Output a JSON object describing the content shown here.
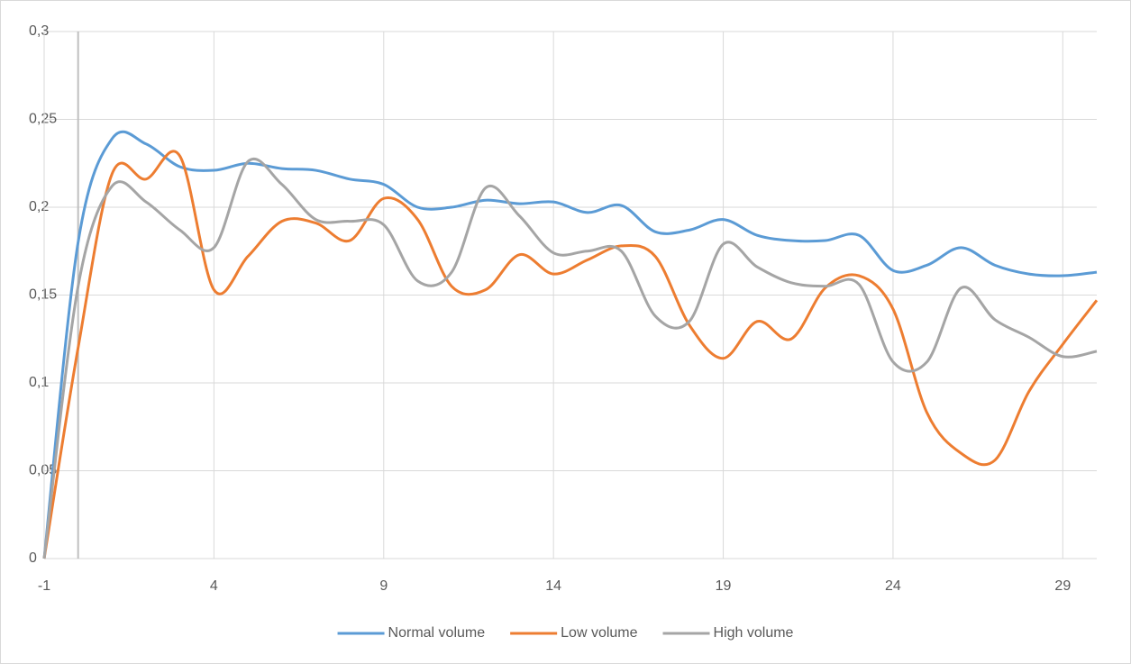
{
  "chart_data": {
    "type": "line",
    "x": [
      -1,
      0,
      1,
      2,
      3,
      4,
      5,
      6,
      7,
      8,
      9,
      10,
      11,
      12,
      13,
      14,
      15,
      16,
      17,
      18,
      19,
      20,
      21,
      22,
      23,
      24,
      25,
      26,
      27,
      28,
      29,
      30
    ],
    "series": [
      {
        "name": "Normal volume",
        "color": "#5b9bd5",
        "values": [
          0,
          0.18,
          0.239,
          0.236,
          0.223,
          0.221,
          0.225,
          0.222,
          0.221,
          0.216,
          0.213,
          0.2,
          0.2,
          0.204,
          0.202,
          0.203,
          0.197,
          0.201,
          0.186,
          0.187,
          0.193,
          0.184,
          0.181,
          0.181,
          0.184,
          0.164,
          0.167,
          0.177,
          0.167,
          0.162,
          0.161,
          0.163
        ]
      },
      {
        "name": "Low volume",
        "color": "#ed7d31",
        "values": [
          0,
          0.12,
          0.219,
          0.216,
          0.229,
          0.153,
          0.172,
          0.192,
          0.191,
          0.181,
          0.205,
          0.193,
          0.155,
          0.153,
          0.173,
          0.162,
          0.17,
          0.178,
          0.172,
          0.133,
          0.114,
          0.135,
          0.125,
          0.154,
          0.161,
          0.142,
          0.083,
          0.06,
          0.056,
          0.095,
          0.122,
          0.147
        ]
      },
      {
        "name": "High volume",
        "color": "#a5a5a5",
        "values": [
          0,
          0.155,
          0.212,
          0.203,
          0.187,
          0.177,
          0.226,
          0.213,
          0.193,
          0.192,
          0.19,
          0.158,
          0.163,
          0.211,
          0.195,
          0.174,
          0.175,
          0.175,
          0.138,
          0.135,
          0.179,
          0.166,
          0.157,
          0.155,
          0.156,
          0.112,
          0.112,
          0.154,
          0.136,
          0.126,
          0.115,
          0.118
        ]
      }
    ],
    "xlim": [
      -1,
      30
    ],
    "xticks": [
      -1,
      4,
      9,
      14,
      19,
      24,
      29
    ],
    "ylim": [
      0,
      0.3
    ],
    "yticks": [
      0,
      {
        "value": 0.05,
        "label": "0,05"
      },
      {
        "value": 0.1,
        "label": "0,1"
      },
      {
        "value": 0.15,
        "label": "0,15"
      },
      {
        "value": 0.2,
        "label": "0,2"
      },
      {
        "value": 0.25,
        "label": "0,25"
      },
      {
        "value": 0.3,
        "label": "0,3"
      }
    ],
    "y_axis_crosses_at": 0,
    "grid": true,
    "smooth": true,
    "legend": "bottom"
  }
}
